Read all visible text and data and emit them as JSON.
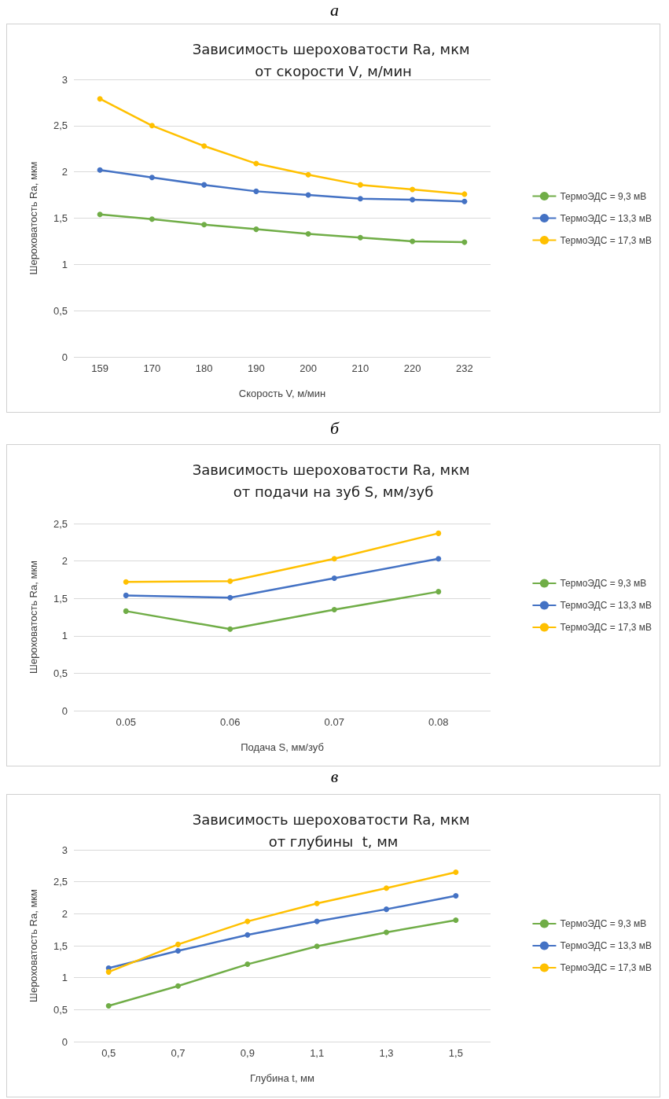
{
  "chart_data": [
    {
      "type": "line",
      "annotations": [
        "а"
      ],
      "title": "Зависимость шероховатости Ra, мкм от скорости V, м/мин",
      "xlabel": "Скорость V, м/мин",
      "ylabel": "Шероховатость Ra, мкм",
      "categories": [
        "159",
        "170",
        "180",
        "190",
        "200",
        "210",
        "220",
        "232"
      ],
      "ylim": [
        0,
        3
      ],
      "yticks": [
        0,
        {
          "value": 0.5,
          "label": "0,5"
        },
        1,
        {
          "value": 1.5,
          "label": "1,5"
        },
        2,
        {
          "value": 2.5,
          "label": "2,5"
        },
        3
      ],
      "grid": "y",
      "legend": "right",
      "marker": "circle",
      "series": [
        {
          "name": "ТермоЭДС = 9,3 мВ",
          "color": "#70ad47",
          "values": [
            1.54,
            1.49,
            1.43,
            1.38,
            1.33,
            1.29,
            1.25,
            1.24
          ]
        },
        {
          "name": "ТермоЭДС = 13,3 мВ",
          "color": "#4472c4",
          "values": [
            2.02,
            1.94,
            1.86,
            1.79,
            1.75,
            1.71,
            1.7,
            1.68
          ]
        },
        {
          "name": "ТермоЭДС = 17,3 мВ",
          "color": "#ffc000",
          "values": [
            2.79,
            2.5,
            2.28,
            2.09,
            1.97,
            1.86,
            1.81,
            1.76
          ]
        }
      ]
    },
    {
      "type": "line",
      "annotations": [
        "б"
      ],
      "title": "Зависимость шероховатости Ra, мкм от подачи на зуб S, мм/зуб",
      "xlabel": "Подача S, мм/зуб",
      "ylabel": "Шероховатость Ra, мкм",
      "categories": [
        "0.05",
        "0.06",
        "0.07",
        "0.08"
      ],
      "ylim": [
        0,
        2.5
      ],
      "yticks": [
        0,
        {
          "value": 0.5,
          "label": "0,5"
        },
        1,
        {
          "value": 1.5,
          "label": "1,5"
        },
        2,
        {
          "value": 2.5,
          "label": "2,5"
        }
      ],
      "grid": "y",
      "legend": "right",
      "marker": "circle",
      "series": [
        {
          "name": "ТермоЭДС = 9,3 мВ",
          "color": "#70ad47",
          "values": [
            1.33,
            1.09,
            1.35,
            1.59
          ]
        },
        {
          "name": "ТермоЭДС = 13,3 мВ",
          "color": "#4472c4",
          "values": [
            1.54,
            1.51,
            1.77,
            2.03
          ]
        },
        {
          "name": "ТермоЭДС = 17,3 мВ",
          "color": "#ffc000",
          "values": [
            1.72,
            1.73,
            2.03,
            2.37
          ]
        }
      ]
    },
    {
      "type": "line",
      "annotations": [
        "в"
      ],
      "title": "Зависимость шероховатости Ra, мкм от глубины  t, мм",
      "xlabel": "Глубина t, мм",
      "ylabel": "Шероховатость Ra, мкм",
      "categories": [
        "0,5",
        "0,7",
        "0,9",
        "1,1",
        "1,3",
        "1,5"
      ],
      "ylim": [
        0,
        3
      ],
      "yticks": [
        0,
        {
          "value": 0.5,
          "label": "0,5"
        },
        1,
        {
          "value": 1.5,
          "label": "1,5"
        },
        2,
        {
          "value": 2.5,
          "label": "2,5"
        },
        3
      ],
      "grid": "y",
      "legend": "right",
      "marker": "circle",
      "series": [
        {
          "name": "ТермоЭДС = 9,3 мВ",
          "color": "#70ad47",
          "values": [
            0.56,
            0.87,
            1.21,
            1.49,
            1.71,
            1.9
          ]
        },
        {
          "name": "ТермоЭДС = 13,3 мВ",
          "color": "#4472c4",
          "values": [
            1.15,
            1.42,
            1.67,
            1.88,
            2.07,
            2.28
          ]
        },
        {
          "name": "ТермоЭДС = 17,3 мВ",
          "color": "#ffc000",
          "values": [
            1.09,
            1.52,
            1.88,
            2.16,
            2.4,
            2.65
          ]
        }
      ]
    }
  ]
}
